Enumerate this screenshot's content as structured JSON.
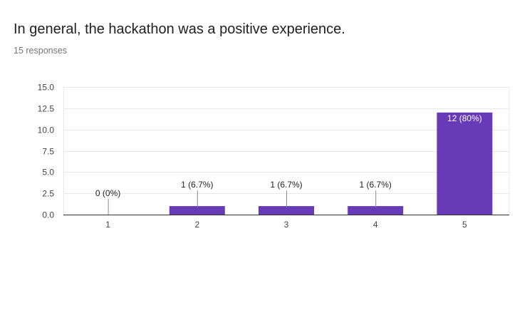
{
  "question": {
    "title": "In general, the hackathon was a positive experience.",
    "responses": "15 responses"
  },
  "colors": {
    "bar": "#673ab7",
    "grid": "#e8e8e8",
    "axis": "#333333",
    "label_outside": "#212121",
    "label_inside": "#ffffff"
  },
  "chart_data": {
    "type": "bar",
    "title": "In general, the hackathon was a positive experience.",
    "xlabel": "",
    "ylabel": "",
    "categories": [
      "1",
      "2",
      "3",
      "4",
      "5"
    ],
    "values": [
      0,
      1,
      1,
      1,
      12
    ],
    "data_labels": [
      "0 (0%)",
      "1 (6.7%)",
      "1 (6.7%)",
      "1 (6.7%)",
      "12 (80%)"
    ],
    "ylim": [
      0,
      15
    ],
    "yticks": [
      0,
      2.5,
      5,
      7.5,
      10,
      12.5,
      15
    ],
    "ytick_labels": [
      "0.0",
      "2.5",
      "5.0",
      "7.5",
      "10.0",
      "12.5",
      "15.0"
    ],
    "grid": true,
    "legend": "none"
  }
}
